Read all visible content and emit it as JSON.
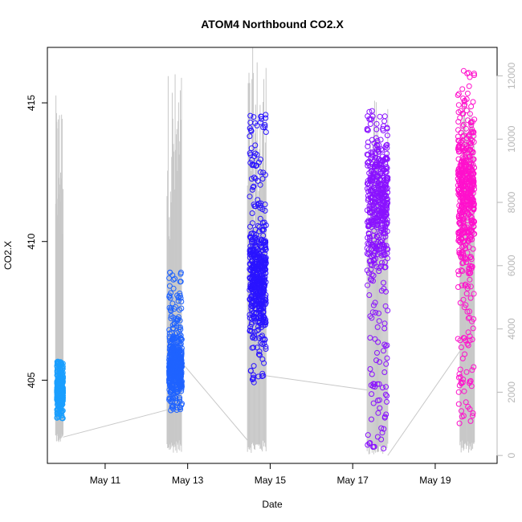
{
  "chart_data": {
    "type": "scatter",
    "title": "ATOM4 Northbound CO2.X",
    "xlabel": "Date",
    "ylabel": "CO2.X",
    "x_unit": "day of May",
    "xlim": [
      9.6,
      20.5
    ],
    "ylim": [
      402.0,
      417.0
    ],
    "y2lim": [
      -250,
      12900
    ],
    "x_ticks": [
      {
        "value": 11,
        "label": "May 11"
      },
      {
        "value": 13,
        "label": "May 13"
      },
      {
        "value": 15,
        "label": "May 15"
      },
      {
        "value": 17,
        "label": "May 17"
      },
      {
        "value": 19,
        "label": "May 19"
      }
    ],
    "y_ticks": [
      {
        "value": 405,
        "label": "405"
      },
      {
        "value": 410,
        "label": "410"
      },
      {
        "value": 415,
        "label": "415"
      }
    ],
    "y2_ticks": [
      {
        "value": 0,
        "label": "0"
      },
      {
        "value": 2000,
        "label": "2000"
      },
      {
        "value": 4000,
        "label": "4000"
      },
      {
        "value": 6000,
        "label": "6000"
      },
      {
        "value": 8000,
        "label": "8000"
      },
      {
        "value": 10000,
        "label": "10000"
      },
      {
        "value": 12000,
        "label": "12000"
      }
    ],
    "grid": false,
    "series": [
      {
        "color": "#1a9fff",
        "x_range": [
          9.83,
          9.98
        ],
        "y_range": [
          403.6,
          405.7
        ],
        "y_center": 404.6
      },
      {
        "color": "#1f63ff",
        "x_range": [
          12.55,
          12.86
        ],
        "y_range": [
          403.9,
          408.9
        ],
        "y_center": 405.5
      },
      {
        "color": "#2a14ff",
        "x_range": [
          14.5,
          14.9
        ],
        "y_range": [
          404.9,
          414.6
        ],
        "y_center": 408.5
      },
      {
        "color": "#8a12ff",
        "x_range": [
          17.35,
          17.85
        ],
        "y_range": [
          402.5,
          414.8
        ],
        "y_center": 411.6
      },
      {
        "color": "#ff10cc",
        "x_range": [
          19.55,
          19.95
        ],
        "y_range": [
          403.4,
          416.2
        ],
        "y_center": 411.8
      }
    ],
    "secondary_line": {
      "color": "#c8c8c8",
      "spans": [
        {
          "x": [
            9.8,
            9.98
          ],
          "y2_range": [
            380,
            11400
          ]
        },
        {
          "x": [
            12.5,
            12.85
          ],
          "y2_range": [
            80,
            12300
          ]
        },
        {
          "x": [
            14.45,
            14.9
          ],
          "y2_range": [
            80,
            12900
          ]
        },
        {
          "x": [
            17.35,
            17.85
          ],
          "y2_range": [
            0,
            11300
          ]
        },
        {
          "x": [
            19.6,
            19.95
          ],
          "y2_range": [
            80,
            11200
          ]
        }
      ],
      "links": [
        {
          "x": [
            9.98,
            12.5
          ],
          "y2": [
            580,
            1440
          ]
        },
        {
          "x": [
            12.85,
            14.45
          ],
          "y2": [
            2950,
            480
          ]
        },
        {
          "x": [
            14.9,
            17.35
          ],
          "y2": [
            2520,
            2070
          ]
        },
        {
          "x": [
            17.85,
            19.6
          ],
          "y2": [
            0,
            3300
          ]
        }
      ]
    }
  }
}
